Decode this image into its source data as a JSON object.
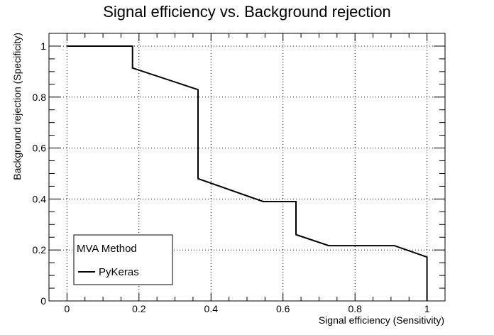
{
  "chart_data": {
    "type": "line",
    "title": "Signal efficiency vs. Background rejection",
    "xlabel": "Signal efficiency (Sensitivity)",
    "ylabel": "Background rejection (Specificity)",
    "xlim": [
      -0.05,
      1.05
    ],
    "ylim": [
      0,
      1.05
    ],
    "xticks": [
      0,
      0.2,
      0.4,
      0.6,
      0.8,
      1
    ],
    "xtick_labels": [
      "0",
      "0.2",
      "0.4",
      "0.6",
      "0.8",
      "1"
    ],
    "yticks": [
      0,
      0.2,
      0.4,
      0.6,
      0.8,
      1
    ],
    "ytick_labels": [
      "0",
      "0.2",
      "0.4",
      "0.6",
      "0.8",
      "1"
    ],
    "grid": true,
    "series": [
      {
        "name": "PyKeras",
        "color": "#000000",
        "x": [
          0,
          0.182,
          0.182,
          0.364,
          0.364,
          0.545,
          0.636,
          0.636,
          0.727,
          0.909,
          1.0,
          1.0
        ],
        "y": [
          1.0,
          1.0,
          0.914,
          0.829,
          0.48,
          0.39,
          0.39,
          0.26,
          0.217,
          0.217,
          0.172,
          0.0
        ]
      }
    ],
    "legend": {
      "title": "MVA Method",
      "position": "bottom-left"
    }
  }
}
